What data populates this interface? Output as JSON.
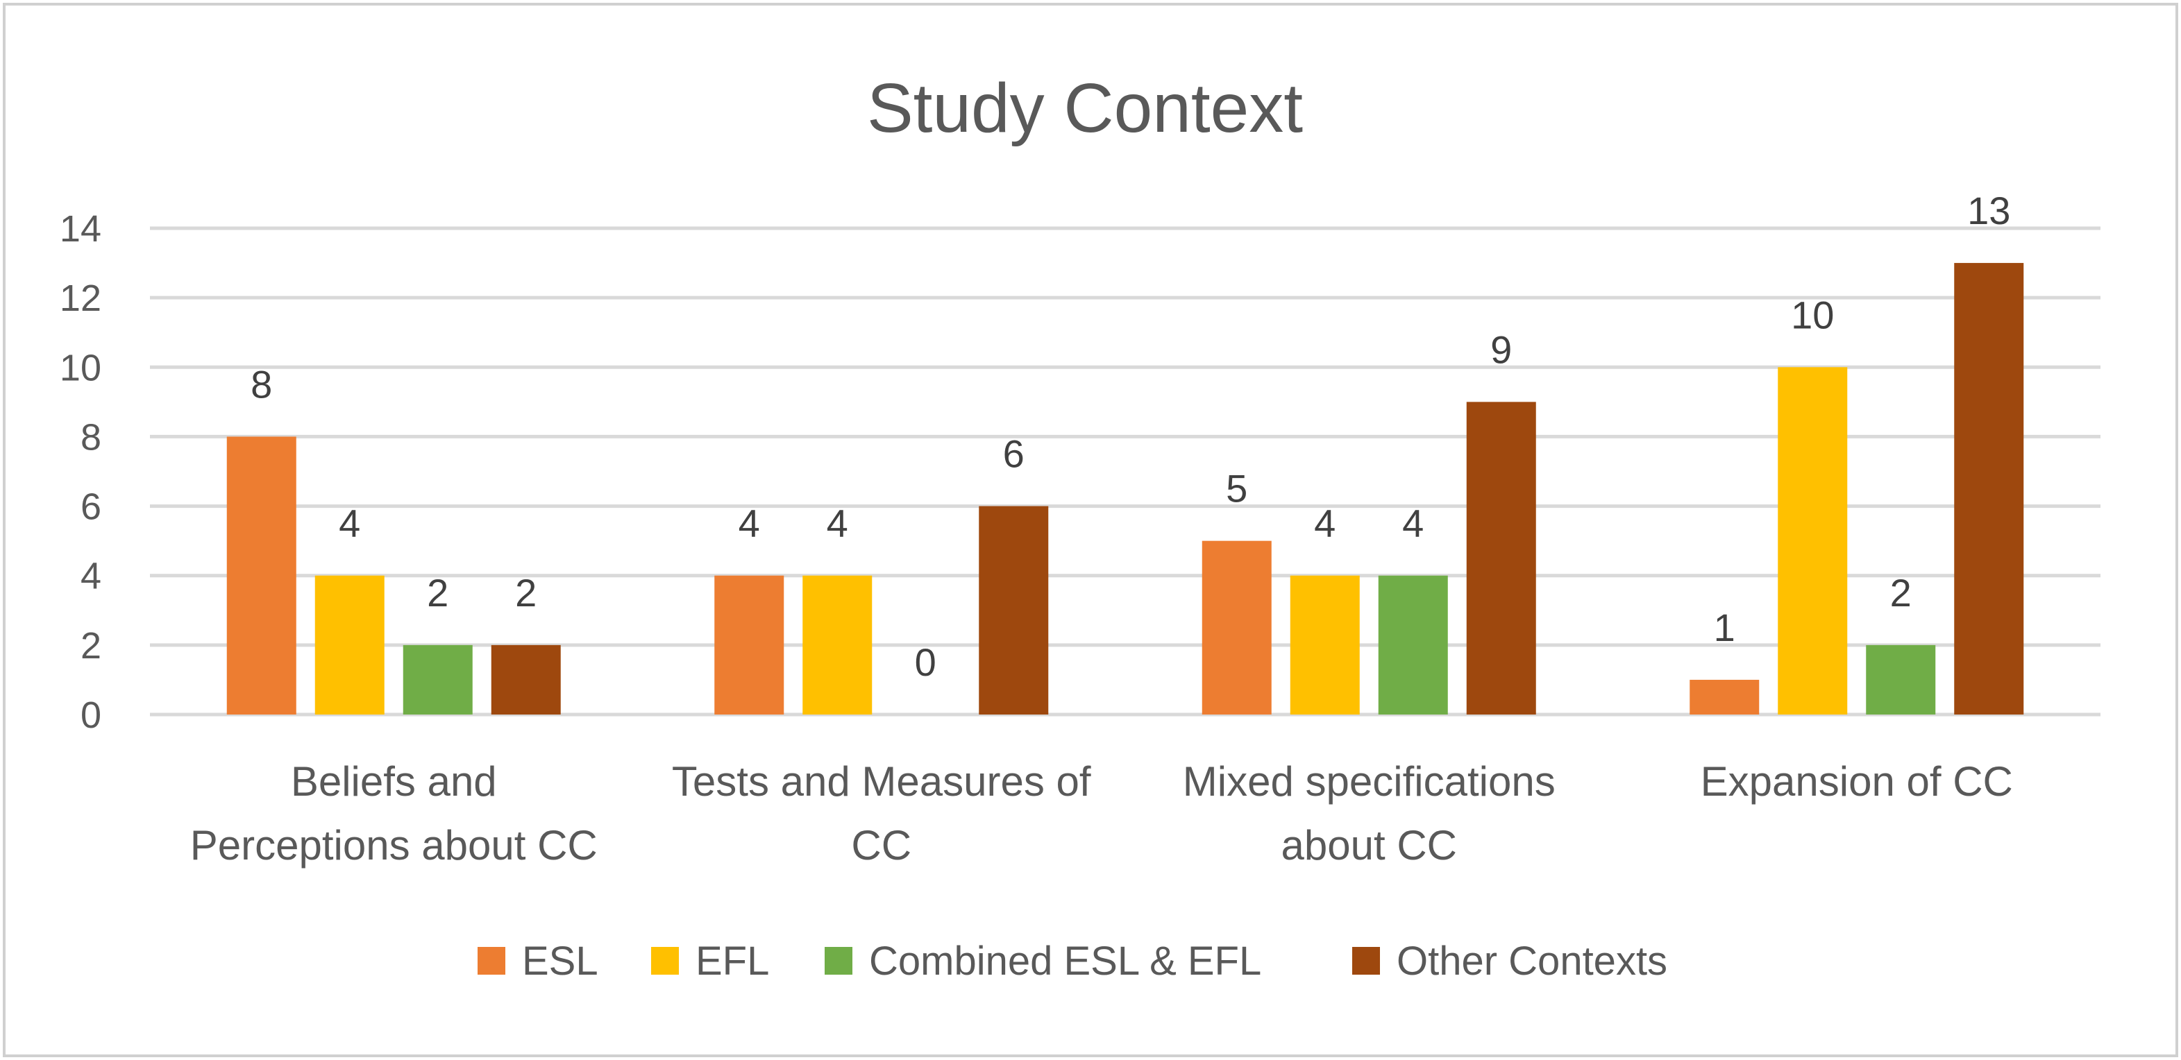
{
  "chart_data": {
    "type": "bar",
    "title": "Study Context",
    "categories": [
      [
        "Beliefs and",
        "Perceptions about CC"
      ],
      [
        "Tests and Measures of",
        "CC"
      ],
      [
        "Mixed specifications",
        "about CC"
      ],
      [
        "Expansion of CC"
      ]
    ],
    "series": [
      {
        "name": "ESL",
        "color": "#ED7D31",
        "values": [
          8,
          4,
          5,
          1
        ]
      },
      {
        "name": "EFL",
        "color": "#FFC000",
        "values": [
          4,
          4,
          4,
          10
        ]
      },
      {
        "name": "Combined ESL & EFL",
        "color": "#70AD47",
        "values": [
          2,
          0,
          4,
          2
        ]
      },
      {
        "name": "Other Contexts",
        "color": "#9E480E",
        "values": [
          2,
          6,
          9,
          13
        ]
      }
    ],
    "ylim": [
      0,
      14
    ],
    "yticks": [
      0,
      2,
      4,
      6,
      8,
      10,
      12,
      14
    ],
    "grid": true,
    "legend": "bottom",
    "xlabel": "",
    "ylabel": ""
  }
}
